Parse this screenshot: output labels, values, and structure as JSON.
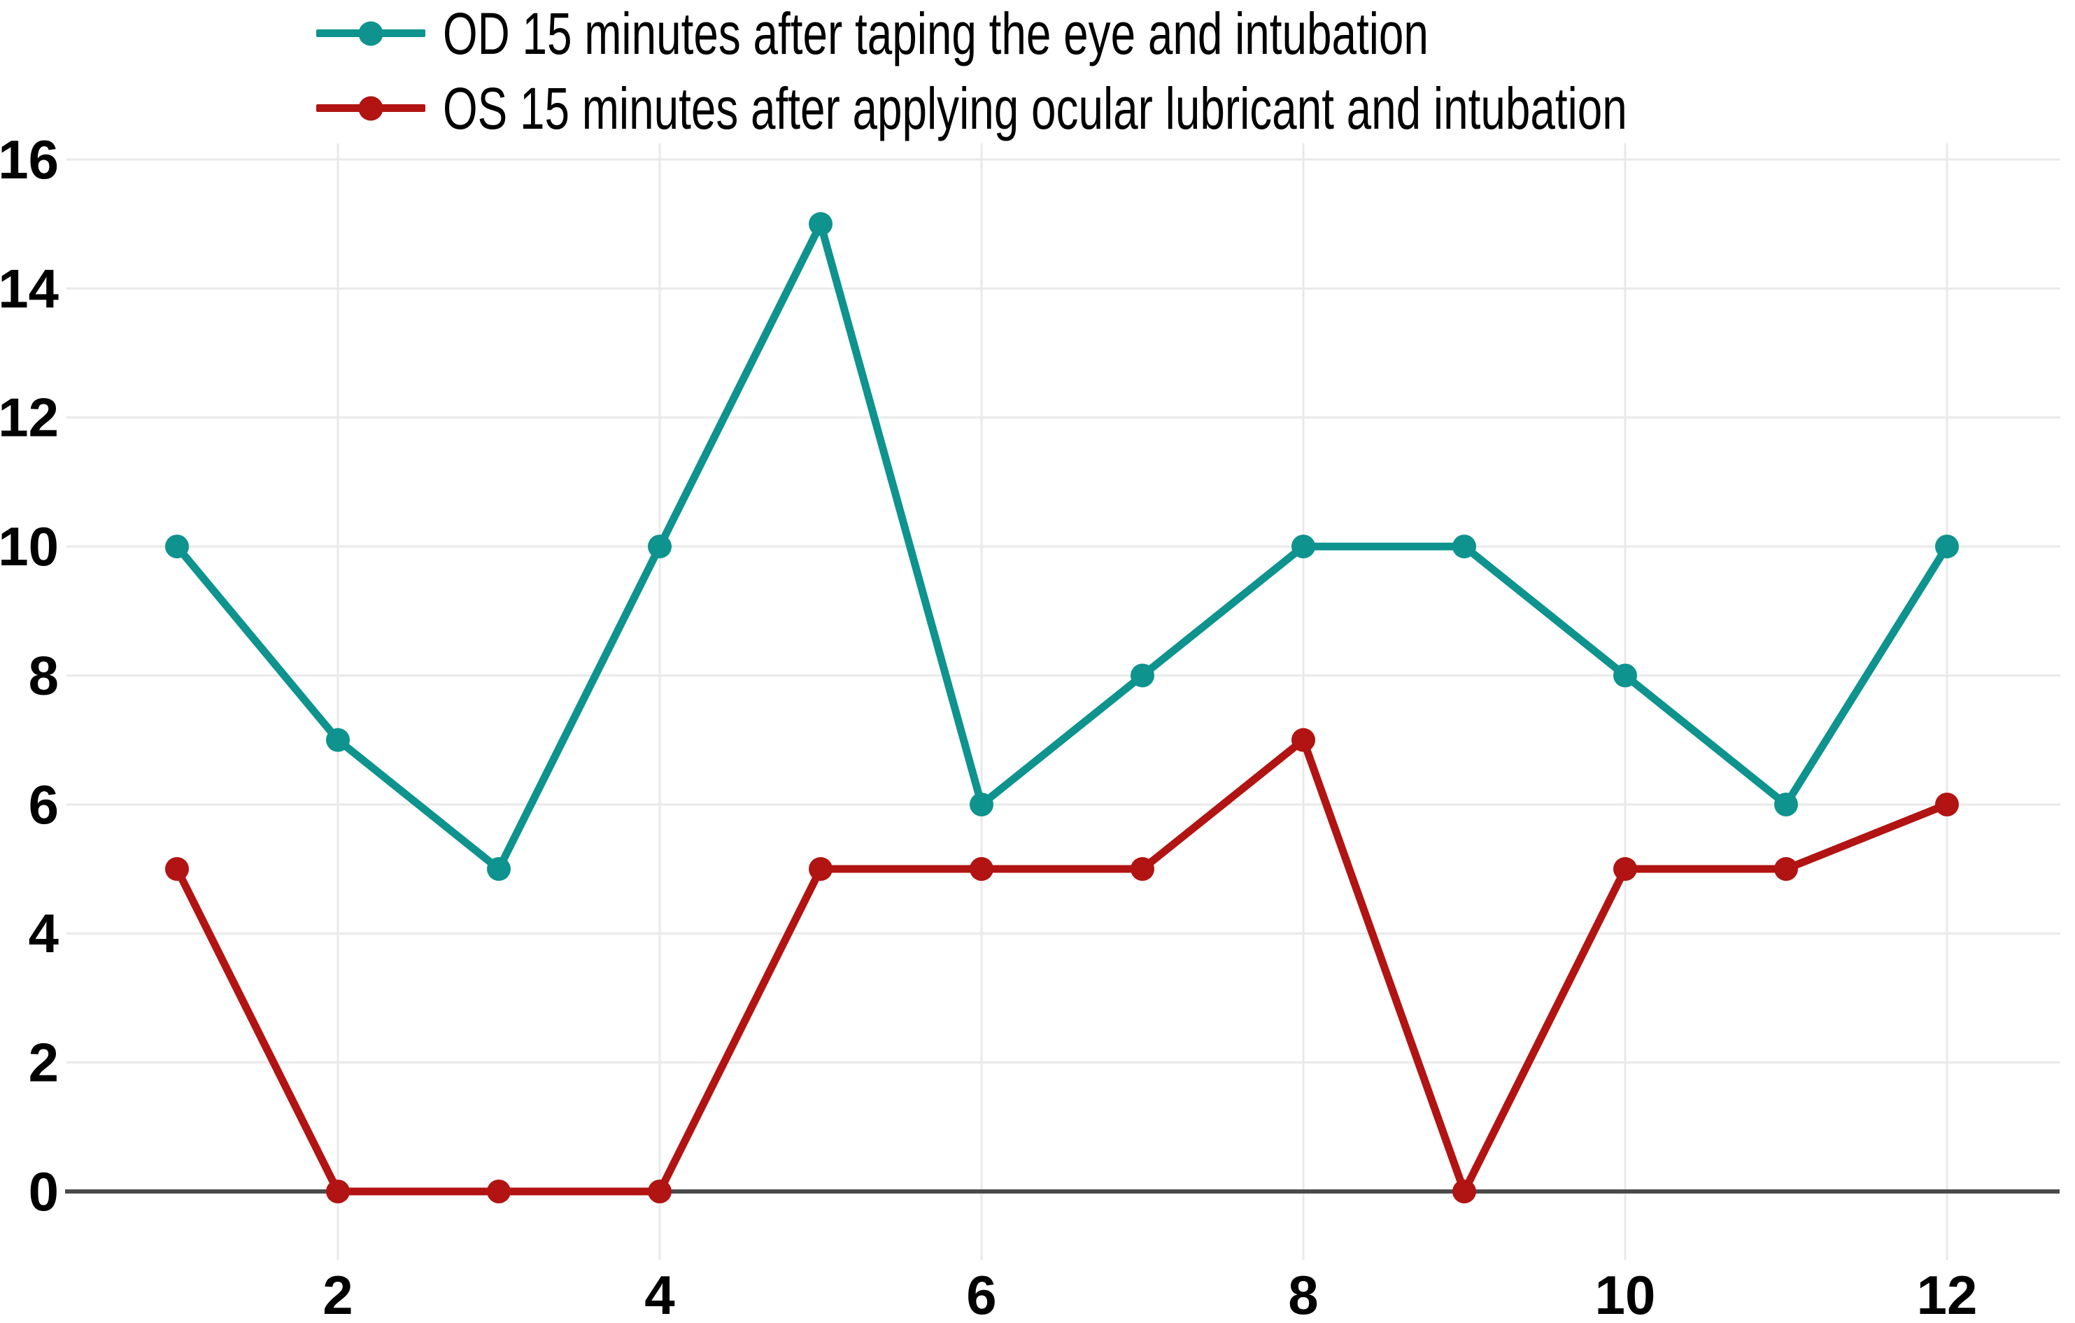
{
  "figure": {
    "background": "#FFFFFF"
  },
  "legend": {
    "position": "top-left",
    "items": [
      {
        "label": "OD 15 minutes after taping the eye and intubation",
        "marker": "line-with-dot",
        "color": "#0E938E"
      },
      {
        "label": "OS 15 minutes after applying ocular lubricant and intubation",
        "marker": "line-with-dot",
        "color": "#B11412"
      }
    ]
  },
  "chart_data": {
    "type": "line",
    "title": "",
    "xlabel": "",
    "ylabel": "",
    "x": [
      1,
      2,
      3,
      4,
      5,
      6,
      7,
      8,
      9,
      10,
      11,
      12
    ],
    "series": [
      {
        "name": "OD 15 minutes after taping the eye and intubation",
        "color": "#0E938E",
        "marker": "circle",
        "values": [
          10,
          7,
          5,
          10,
          15,
          6,
          8,
          10,
          10,
          8,
          6,
          10
        ]
      },
      {
        "name": "OS 15 minutes after applying ocular lubricant and intubation",
        "color": "#B11412",
        "marker": "circle",
        "values": [
          5,
          0,
          0,
          0,
          5,
          5,
          5,
          7,
          0,
          5,
          5,
          6
        ]
      }
    ],
    "xticks": [
      2,
      4,
      6,
      8,
      10,
      12
    ],
    "yticks": [
      0,
      2,
      4,
      6,
      8,
      10,
      12,
      14,
      16
    ],
    "xlim": [
      0.3,
      12.7
    ],
    "ylim": [
      -1,
      16.25
    ],
    "grid": true,
    "legend_position": "top-left",
    "colors": {
      "grid": "#E9E9E9",
      "axis": "#4A4A4A",
      "text": "#000000",
      "background": "#FFFFFF"
    }
  }
}
